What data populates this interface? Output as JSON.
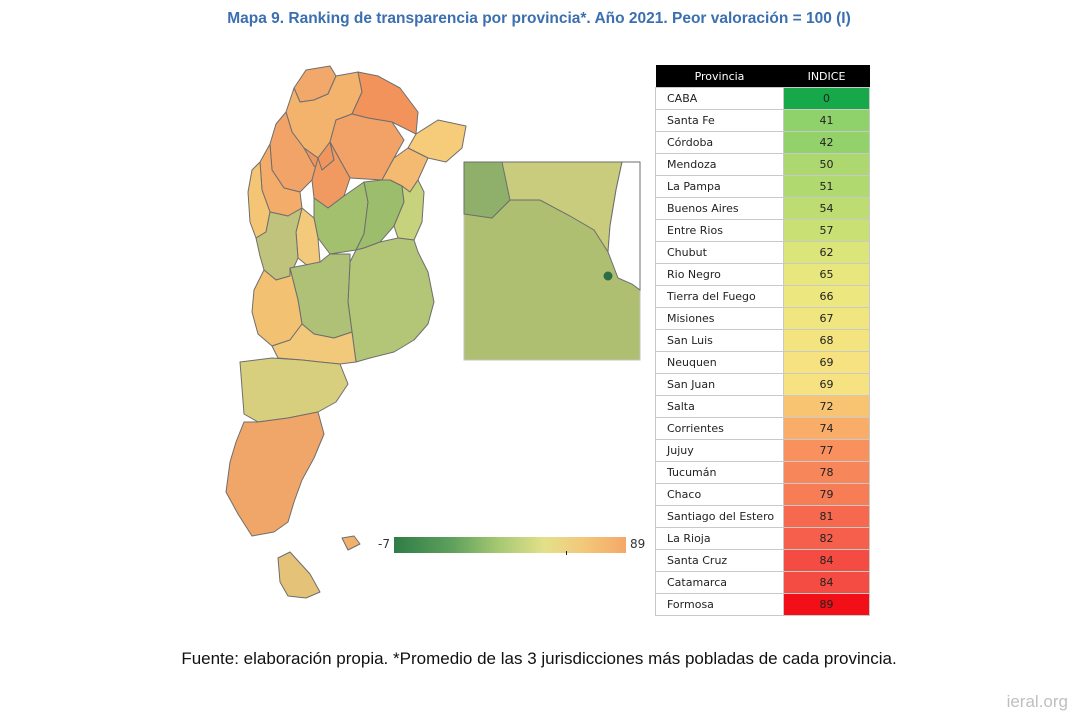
{
  "title": "Mapa 9. Ranking de transparencia por provincia*. Año 2021. Peor valoración = 100 (I)",
  "table": {
    "headers": [
      "Provincia",
      "INDICE"
    ],
    "rows": [
      {
        "name": "CABA",
        "value": 0,
        "color": "#17a84a"
      },
      {
        "name": "Santa Fe",
        "value": 41,
        "color": "#8fd16b"
      },
      {
        "name": "Córdoba",
        "value": 42,
        "color": "#93d16b"
      },
      {
        "name": "Mendoza",
        "value": 50,
        "color": "#add86f"
      },
      {
        "name": "La Pampa",
        "value": 51,
        "color": "#b0d96f"
      },
      {
        "name": "Buenos Aires",
        "value": 54,
        "color": "#bddc72"
      },
      {
        "name": "Entre Rios",
        "value": 57,
        "color": "#c9e075"
      },
      {
        "name": "Chubut",
        "value": 62,
        "color": "#dce57a"
      },
      {
        "name": "Rio Negro",
        "value": 65,
        "color": "#e8e77d"
      },
      {
        "name": "Tierra del Fuego",
        "value": 66,
        "color": "#ece77e"
      },
      {
        "name": "Misiones",
        "value": 67,
        "color": "#f0e67f"
      },
      {
        "name": "San Luis",
        "value": 68,
        "color": "#f3e480"
      },
      {
        "name": "Neuquen",
        "value": 69,
        "color": "#f6e280"
      },
      {
        "name": "San Juan",
        "value": 69,
        "color": "#f6e280"
      },
      {
        "name": "Salta",
        "value": 72,
        "color": "#f9c472"
      },
      {
        "name": "Corrientes",
        "value": 74,
        "color": "#f9ad68"
      },
      {
        "name": "Jujuy",
        "value": 77,
        "color": "#f8915d"
      },
      {
        "name": "Tucumán",
        "value": 78,
        "color": "#f7875a"
      },
      {
        "name": "Chaco",
        "value": 79,
        "color": "#f77d56"
      },
      {
        "name": "Santiago del Estero",
        "value": 81,
        "color": "#f6694e"
      },
      {
        "name": "La Rioja",
        "value": 82,
        "color": "#f55f4b"
      },
      {
        "name": "Santa Cruz",
        "value": 84,
        "color": "#f44c43"
      },
      {
        "name": "Catamarca",
        "value": 84,
        "color": "#f44c43"
      },
      {
        "name": "Formosa",
        "value": 89,
        "color": "#f20f17"
      }
    ]
  },
  "scale": {
    "min": "-7",
    "max": "89"
  },
  "source_note": "Fuente: elaboración propia. *Promedio de las 3 jurisdicciones más pobladas de cada provincia.",
  "watermark": "ieral.org"
}
